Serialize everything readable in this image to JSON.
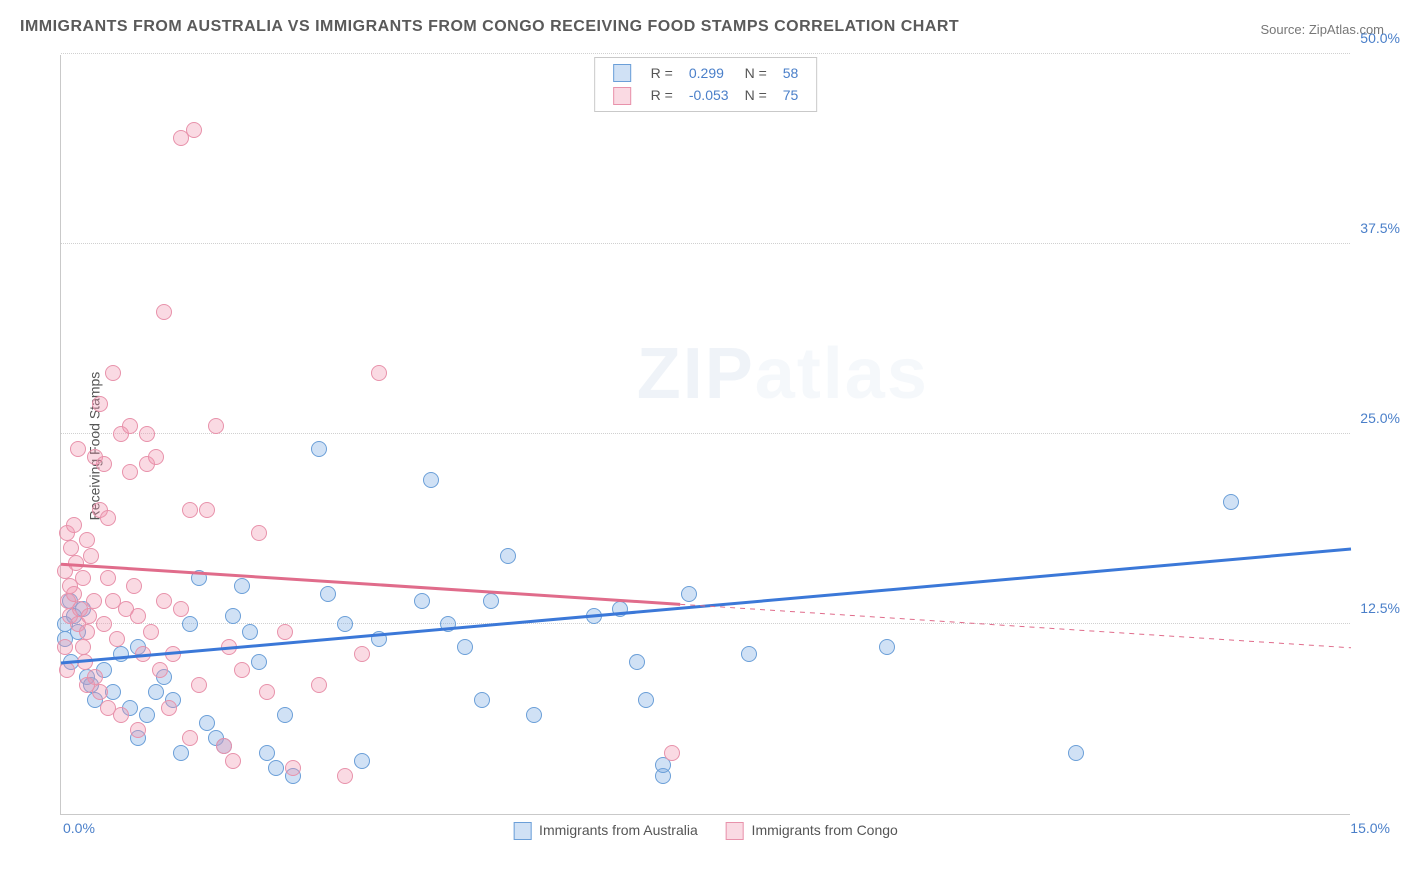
{
  "title": "IMMIGRANTS FROM AUSTRALIA VS IMMIGRANTS FROM CONGO RECEIVING FOOD STAMPS CORRELATION CHART",
  "source": "Source: ZipAtlas.com",
  "ylabel": "Receiving Food Stamps",
  "watermark": {
    "a": "ZIP",
    "b": "atlas"
  },
  "chart": {
    "type": "scatter",
    "xlim": [
      0,
      15
    ],
    "ylim": [
      0,
      50
    ],
    "xtick_left": "0.0%",
    "xtick_right": "15.0%",
    "yticks": [
      {
        "v": 12.5,
        "label": "12.5%"
      },
      {
        "v": 25.0,
        "label": "25.0%"
      },
      {
        "v": 37.5,
        "label": "37.5%"
      },
      {
        "v": 50.0,
        "label": "50.0%"
      }
    ],
    "grid_color": "#d0d0d0",
    "background_color": "#ffffff",
    "series": [
      {
        "name": "Immigrants from Australia",
        "color_fill": "rgba(120,170,225,0.35)",
        "color_stroke": "#6b9fd8",
        "trend_color": "#3b78d8",
        "trend_width": 3,
        "trend": {
          "x1": 0,
          "y1": 10.0,
          "x2": 15,
          "y2": 17.5,
          "x_data_max": 15
        },
        "R": "0.299",
        "N": "58",
        "points": [
          [
            0.1,
            14.0
          ],
          [
            0.15,
            13.0
          ],
          [
            0.2,
            12.0
          ],
          [
            0.25,
            13.5
          ],
          [
            0.05,
            12.5
          ],
          [
            0.3,
            9.0
          ],
          [
            0.35,
            8.5
          ],
          [
            0.4,
            7.5
          ],
          [
            0.5,
            9.5
          ],
          [
            0.6,
            8.0
          ],
          [
            0.7,
            10.5
          ],
          [
            0.8,
            7.0
          ],
          [
            0.9,
            11.0
          ],
          [
            1.0,
            6.5
          ],
          [
            1.1,
            8.0
          ],
          [
            1.2,
            9.0
          ],
          [
            1.3,
            7.5
          ],
          [
            1.4,
            4.0
          ],
          [
            1.5,
            12.5
          ],
          [
            1.6,
            15.5
          ],
          [
            1.7,
            6.0
          ],
          [
            1.8,
            5.0
          ],
          [
            1.9,
            4.5
          ],
          [
            2.0,
            13.0
          ],
          [
            2.1,
            15.0
          ],
          [
            2.2,
            12.0
          ],
          [
            2.3,
            10.0
          ],
          [
            2.4,
            4.0
          ],
          [
            2.5,
            3.0
          ],
          [
            2.6,
            6.5
          ],
          [
            2.7,
            2.5
          ],
          [
            3.0,
            24.0
          ],
          [
            3.1,
            14.5
          ],
          [
            3.3,
            12.5
          ],
          [
            3.5,
            3.5
          ],
          [
            3.7,
            11.5
          ],
          [
            4.2,
            14.0
          ],
          [
            4.3,
            22.0
          ],
          [
            4.5,
            12.5
          ],
          [
            4.7,
            11.0
          ],
          [
            4.9,
            7.5
          ],
          [
            5.0,
            14.0
          ],
          [
            5.2,
            17.0
          ],
          [
            5.5,
            6.5
          ],
          [
            6.2,
            13.0
          ],
          [
            6.5,
            13.5
          ],
          [
            6.7,
            10.0
          ],
          [
            6.8,
            7.5
          ],
          [
            7.0,
            2.5
          ],
          [
            7.0,
            3.2
          ],
          [
            7.3,
            14.5
          ],
          [
            8.0,
            10.5
          ],
          [
            9.6,
            11.0
          ],
          [
            11.8,
            4.0
          ],
          [
            13.6,
            20.5
          ],
          [
            0.05,
            11.5
          ],
          [
            0.12,
            10.0
          ],
          [
            0.9,
            5.0
          ]
        ]
      },
      {
        "name": "Immigrants from Congo",
        "color_fill": "rgba(240,150,175,0.35)",
        "color_stroke": "#e892ab",
        "trend_color": "#e06c8b",
        "trend_width": 3,
        "trend": {
          "x1": 0,
          "y1": 16.5,
          "x2": 15,
          "y2": 11.0,
          "x_data_max": 7.2
        },
        "R": "-0.053",
        "N": "75",
        "points": [
          [
            0.05,
            16.0
          ],
          [
            0.07,
            18.5
          ],
          [
            0.08,
            14.0
          ],
          [
            0.1,
            13.0
          ],
          [
            0.1,
            15.0
          ],
          [
            0.12,
            17.5
          ],
          [
            0.15,
            19.0
          ],
          [
            0.15,
            14.5
          ],
          [
            0.18,
            16.5
          ],
          [
            0.2,
            24.0
          ],
          [
            0.2,
            12.5
          ],
          [
            0.22,
            13.5
          ],
          [
            0.25,
            15.5
          ],
          [
            0.25,
            11.0
          ],
          [
            0.28,
            10.0
          ],
          [
            0.3,
            12.0
          ],
          [
            0.3,
            18.0
          ],
          [
            0.32,
            13.0
          ],
          [
            0.35,
            17.0
          ],
          [
            0.38,
            14.0
          ],
          [
            0.4,
            23.5
          ],
          [
            0.4,
            9.0
          ],
          [
            0.45,
            20.0
          ],
          [
            0.45,
            8.0
          ],
          [
            0.5,
            23.0
          ],
          [
            0.5,
            12.5
          ],
          [
            0.55,
            19.5
          ],
          [
            0.55,
            7.0
          ],
          [
            0.6,
            14.0
          ],
          [
            0.6,
            29.0
          ],
          [
            0.65,
            11.5
          ],
          [
            0.7,
            25.0
          ],
          [
            0.7,
            6.5
          ],
          [
            0.75,
            13.5
          ],
          [
            0.8,
            22.5
          ],
          [
            0.8,
            25.5
          ],
          [
            0.85,
            15.0
          ],
          [
            0.9,
            13.0
          ],
          [
            0.9,
            5.5
          ],
          [
            0.95,
            10.5
          ],
          [
            1.0,
            25.0
          ],
          [
            1.0,
            23.0
          ],
          [
            1.05,
            12.0
          ],
          [
            1.1,
            23.5
          ],
          [
            1.15,
            9.5
          ],
          [
            1.2,
            33.0
          ],
          [
            1.2,
            14.0
          ],
          [
            1.25,
            7.0
          ],
          [
            1.3,
            10.5
          ],
          [
            1.4,
            13.5
          ],
          [
            1.4,
            44.5
          ],
          [
            1.5,
            5.0
          ],
          [
            1.5,
            20.0
          ],
          [
            1.55,
            45.0
          ],
          [
            1.6,
            8.5
          ],
          [
            1.7,
            20.0
          ],
          [
            1.8,
            25.5
          ],
          [
            1.9,
            4.5
          ],
          [
            1.95,
            11.0
          ],
          [
            2.0,
            3.5
          ],
          [
            2.1,
            9.5
          ],
          [
            2.3,
            18.5
          ],
          [
            2.4,
            8.0
          ],
          [
            2.6,
            12.0
          ],
          [
            2.7,
            3.0
          ],
          [
            3.0,
            8.5
          ],
          [
            3.3,
            2.5
          ],
          [
            3.5,
            10.5
          ],
          [
            3.7,
            29.0
          ],
          [
            0.05,
            11.0
          ],
          [
            0.07,
            9.5
          ],
          [
            0.45,
            27.0
          ],
          [
            0.55,
            15.5
          ],
          [
            7.1,
            4.0
          ],
          [
            0.3,
            8.5
          ]
        ]
      }
    ]
  },
  "legend_bottom": [
    {
      "swatch": "blue",
      "label": "Immigrants from Australia"
    },
    {
      "swatch": "pink",
      "label": "Immigrants from Congo"
    }
  ]
}
